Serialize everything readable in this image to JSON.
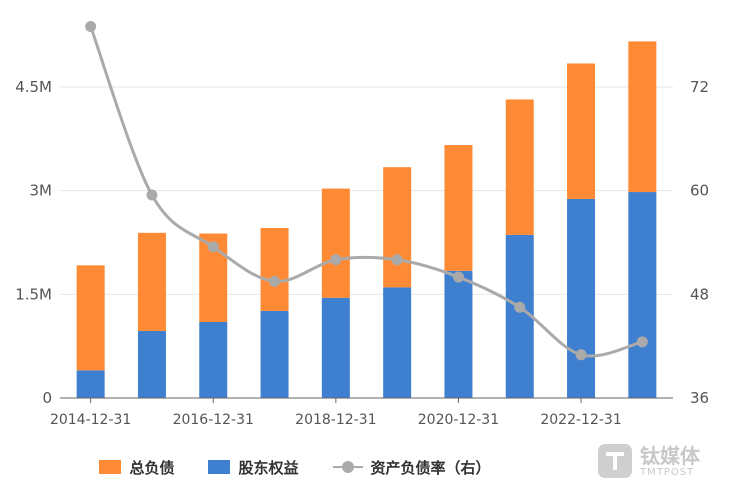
{
  "chart_data": {
    "type": "bar",
    "stacked": true,
    "categories": [
      "2014-12-31",
      "2015-12-31",
      "2016-12-31",
      "2017-12-31",
      "2018-12-31",
      "2019-12-31",
      "2020-12-31",
      "2021-12-31",
      "2022-12-31",
      "2023-12-31"
    ],
    "x_tick_labels": [
      "2014-12-31",
      "2016-12-31",
      "2018-12-31",
      "2020-12-31",
      "2022-12-31"
    ],
    "series": [
      {
        "name": "股东权益",
        "type": "bar",
        "axis": "left",
        "color": "#3f7fd0",
        "values": [
          0.4,
          0.97,
          1.1,
          1.26,
          1.45,
          1.6,
          1.84,
          2.36,
          2.88,
          2.98
        ]
      },
      {
        "name": "总负债",
        "type": "bar",
        "axis": "left",
        "color": "#ff8a35",
        "values": [
          1.52,
          1.42,
          1.28,
          1.2,
          1.58,
          1.74,
          1.82,
          1.96,
          1.96,
          2.18
        ]
      },
      {
        "name": "资产负债率（右）",
        "type": "line",
        "axis": "right",
        "color": "#aaaaaa",
        "values": [
          79.0,
          59.5,
          53.5,
          49.5,
          52.0,
          52.0,
          50.0,
          46.5,
          41.0,
          42.5
        ]
      }
    ],
    "y_left": {
      "ylim": [
        0,
        4.5
      ],
      "unit": "M",
      "ticks": [
        0,
        1.5,
        3,
        4.5
      ],
      "tick_labels": [
        "0",
        "1.5M",
        "3M",
        "4.5M"
      ]
    },
    "y_right": {
      "ylim": [
        36,
        72
      ],
      "ticks": [
        36,
        48,
        60,
        72
      ],
      "tick_labels": [
        "36",
        "48",
        "60",
        "72"
      ]
    },
    "grid": "horizontal",
    "legend_position": "bottom"
  },
  "legend": [
    {
      "label": "总负债",
      "color": "#ff8a35",
      "kind": "bar"
    },
    {
      "label": "股东权益",
      "color": "#3f7fd0",
      "kind": "bar"
    },
    {
      "label": "资产负债率（右）",
      "color": "#aaaaaa",
      "kind": "line"
    }
  ],
  "watermark": {
    "name_cn": "钛媒体",
    "name_en": "TMTPOST"
  }
}
